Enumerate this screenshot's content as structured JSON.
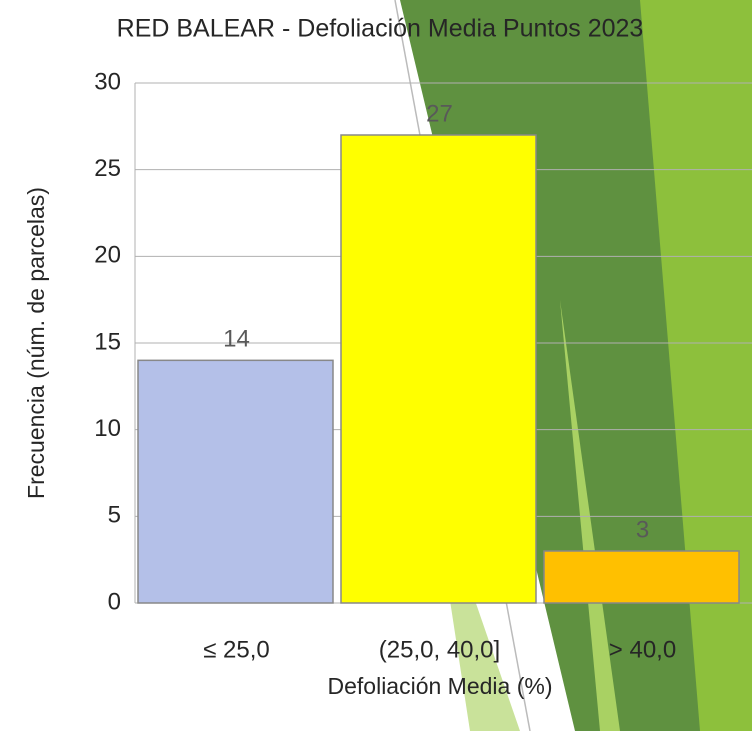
{
  "chart_data": {
    "type": "bar",
    "title": "RED BALEAR - Defoliación Media Puntos 2023",
    "x_label": "Defoliación Media (%)",
    "y_label": "Frecuencia (núm. de parcelas)",
    "categories": [
      "≤ 25,0",
      "(25,0, 40,0]",
      "> 40,0"
    ],
    "values": [
      14,
      27,
      3
    ],
    "colors": [
      "#b4c0e8",
      "#ffff00",
      "#ffc000"
    ],
    "ylim": [
      0,
      30
    ],
    "yticks": [
      0,
      5,
      10,
      15,
      20,
      25,
      30
    ],
    "grid": true
  }
}
